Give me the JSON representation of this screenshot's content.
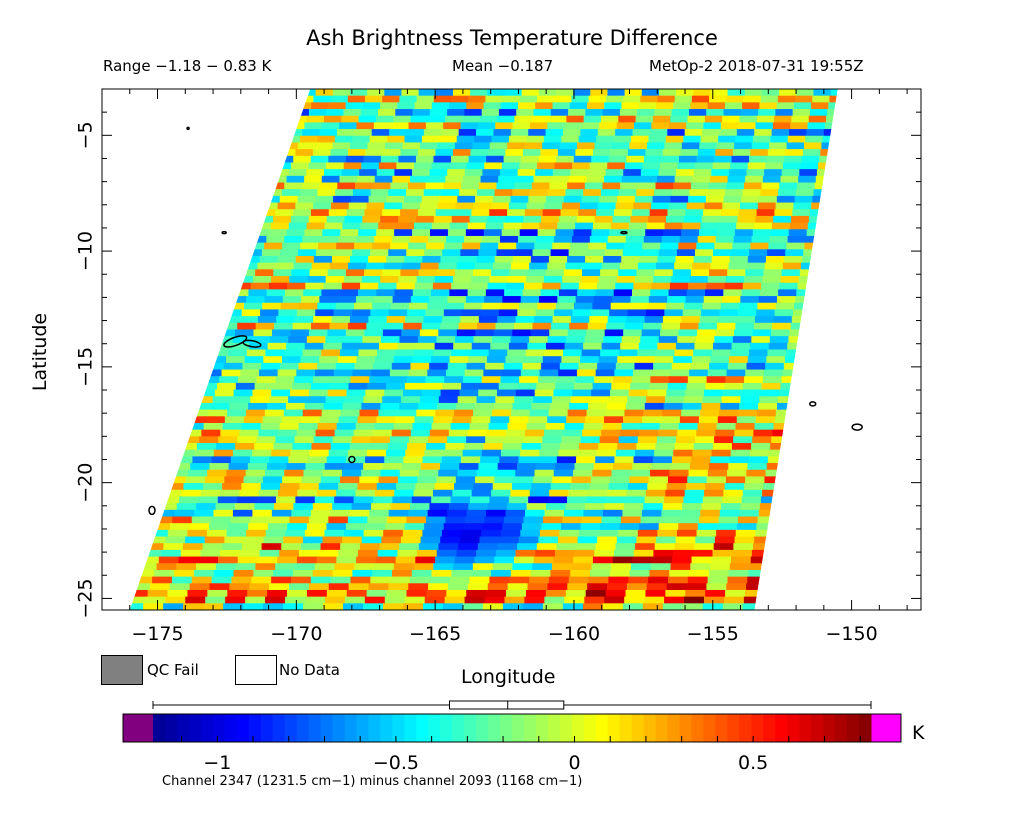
{
  "header": {
    "title": "Ash Brightness Temperature Difference",
    "range": "Range −1.18 − 0.83 K",
    "mean": "Mean −0.187",
    "satellite": "MetOp-2 2018-07-31 19:55Z"
  },
  "legend": {
    "qc_fail_label": "QC Fail",
    "no_data_label": "No Data",
    "qc_fail_color": "#808080",
    "no_data_color": "#ffffff"
  },
  "colorbar": {
    "unit": "K",
    "range": [
      -1.18,
      0.83
    ],
    "tick_values": [
      -1,
      -0.5,
      0,
      0.5
    ],
    "tick_labels": [
      "−1",
      "−0.5",
      "0",
      "0.5"
    ],
    "underflow_color": "#800080",
    "overflow_color": "#ff00ff",
    "colormap": [
      "#00008f",
      "#0000ff",
      "#0080ff",
      "#00ffff",
      "#80ff80",
      "#ffff00",
      "#ff8000",
      "#ff0000",
      "#800000"
    ],
    "boxplot": {
      "min": -1.18,
      "q1": -0.35,
      "median": -0.187,
      "q3": -0.03,
      "max": 0.83
    }
  },
  "footer": {
    "channel_note": "Channel 2347 (1231.5 cm−1) minus channel 2093 (1168 cm−1)"
  },
  "chart_data": {
    "type": "heatmap",
    "title": "Ash Brightness Temperature Difference",
    "xlabel": "Longitude",
    "ylabel": "Latitude",
    "xlim": [
      -177,
      -147.5
    ],
    "ylim": [
      -25.5,
      -3
    ],
    "x_ticks": [
      -175,
      -170,
      -165,
      -160,
      -155,
      -150
    ],
    "x_tick_labels": [
      "−175",
      "−170",
      "−165",
      "−160",
      "−155",
      "−150"
    ],
    "y_ticks": [
      -5,
      -10,
      -15,
      -20,
      -25
    ],
    "y_tick_labels": [
      "−5",
      "−10",
      "−15",
      "−20",
      "−25"
    ],
    "swath_corners_lonlat": {
      "top_left": [
        -169.5,
        -3
      ],
      "top_right": [
        -150.5,
        -3
      ],
      "bottom_right": [
        -153.5,
        -25.5
      ],
      "bottom_left": [
        -176,
        -25.5
      ]
    },
    "value_range": [
      -1.18,
      0.83
    ],
    "mean": -0.187,
    "unit": "K",
    "notable_features": [
      {
        "description": "negative cluster",
        "lon": -164,
        "lat": -22.3,
        "value": -1.1
      },
      {
        "description": "negative cluster",
        "lon": -162.7,
        "lat": -22.0,
        "value": -1.0
      }
    ]
  }
}
